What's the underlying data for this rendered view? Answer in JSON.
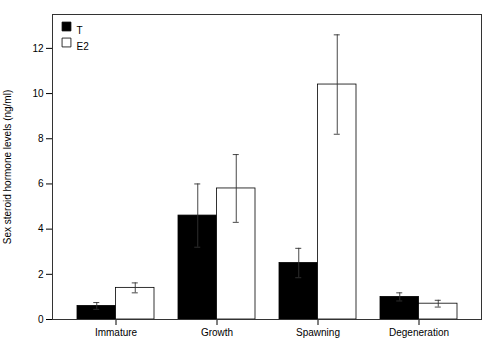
{
  "chart_data": {
    "type": "bar",
    "categories": [
      "Immature",
      "Growth",
      "Spawning",
      "Degeneration"
    ],
    "series": [
      {
        "name": "T",
        "color": "#000000",
        "values": [
          0.6,
          4.6,
          2.5,
          1.0
        ],
        "errors": [
          0.15,
          1.4,
          0.65,
          0.18
        ]
      },
      {
        "name": "E2",
        "color": "#ffffff",
        "values": [
          1.4,
          5.8,
          10.4,
          0.7
        ],
        "errors": [
          0.22,
          1.5,
          2.2,
          0.15
        ]
      }
    ],
    "ylabel": "Sex steroid hormone levels (ng/ml)",
    "ylim": [
      0,
      13.5
    ],
    "yticks": [
      0,
      2,
      4,
      6,
      8,
      10,
      12
    ],
    "legend": "upper left",
    "grid": false
  }
}
